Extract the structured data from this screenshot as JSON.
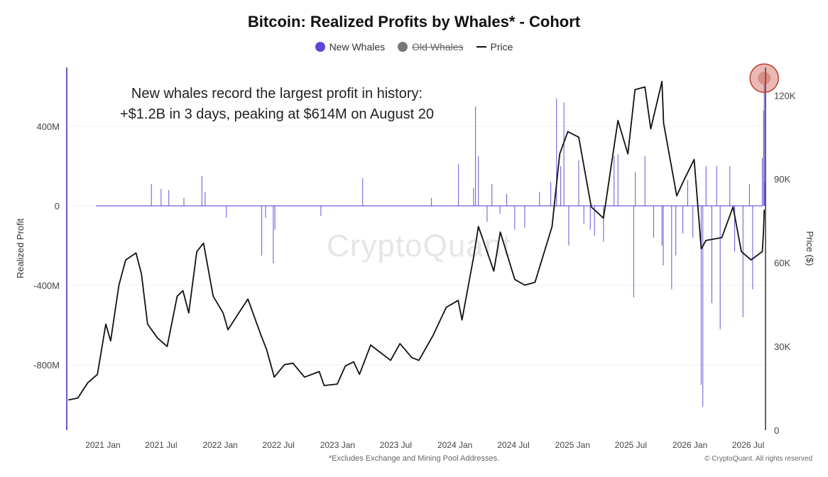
{
  "chart_data": {
    "type": "bar",
    "title": "Bitcoin: Realized Profits by Whales* - Cohort",
    "legend": {
      "placement": "top-center",
      "entries": [
        {
          "label": "New Whales",
          "color": "#5b47d6",
          "marker": "dot",
          "active": true
        },
        {
          "label": "Old Whales",
          "color": "#777777",
          "marker": "dot",
          "active": false
        },
        {
          "label": "Price",
          "color": "#111111",
          "marker": "line",
          "active": true
        }
      ]
    },
    "ylabel": "Realized Profit",
    "y2label": "Price ($)",
    "ylim": [
      -1000,
      600
    ],
    "y2lim": [
      0,
      130000
    ],
    "x_ticks": [
      "2021 Jan",
      "2021 Jul",
      "2022 Jan",
      "2022 Jul",
      "2023 Jan",
      "2023 Jul",
      "2024 Jan",
      "2024 Jul",
      "2025 Jan",
      "2025 Jul",
      "2026 Jan",
      "2026 Jul"
    ],
    "y_ticks": [
      {
        "value": 400,
        "label": "400M"
      },
      {
        "value": 0,
        "label": "0"
      },
      {
        "value": -400,
        "label": "-400M"
      },
      {
        "value": -800,
        "label": "-800M"
      }
    ],
    "y2_ticks": [
      {
        "value": 120000,
        "label": "120K"
      },
      {
        "value": 90000,
        "label": "90K"
      },
      {
        "value": 60000,
        "label": "60K"
      },
      {
        "value": 30000,
        "label": "30K"
      },
      {
        "value": 0,
        "label": "0"
      }
    ],
    "grid": true,
    "annotation": {
      "line1": "New whales record the largest profit in history:",
      "line2": "+$1.2B in 3 days, peaking at $614M on August 20",
      "peak_date": "2026-08-20",
      "peak_value": 614
    },
    "series": [
      {
        "name": "New Whales",
        "kind": "bar",
        "unit": "M",
        "points": [
          [
            "2021-06-01",
            110
          ],
          [
            "2021-07-01",
            85
          ],
          [
            "2021-07-25",
            80
          ],
          [
            "2021-09-10",
            40
          ],
          [
            "2021-11-05",
            150
          ],
          [
            "2021-11-15",
            70
          ],
          [
            "2022-01-20",
            -60
          ],
          [
            "2022-05-10",
            -250
          ],
          [
            "2022-05-22",
            -60
          ],
          [
            "2022-06-15",
            -290
          ],
          [
            "2022-06-20",
            -120
          ],
          [
            "2022-11-10",
            -50
          ],
          [
            "2023-03-20",
            140
          ],
          [
            "2023-10-20",
            40
          ],
          [
            "2024-01-12",
            210
          ],
          [
            "2024-02-28",
            90
          ],
          [
            "2024-03-05",
            500
          ],
          [
            "2024-03-14",
            250
          ],
          [
            "2024-04-10",
            -80
          ],
          [
            "2024-04-25",
            110
          ],
          [
            "2024-05-20",
            -40
          ],
          [
            "2024-06-10",
            60
          ],
          [
            "2024-07-05",
            -120
          ],
          [
            "2024-08-05",
            -110
          ],
          [
            "2024-09-20",
            70
          ],
          [
            "2024-10-25",
            120
          ],
          [
            "2024-11-12",
            540
          ],
          [
            "2024-11-25",
            200
          ],
          [
            "2024-12-05",
            520
          ],
          [
            "2024-12-20",
            -200
          ],
          [
            "2025-01-20",
            230
          ],
          [
            "2025-02-05",
            -90
          ],
          [
            "2025-02-25",
            -120
          ],
          [
            "2025-03-10",
            -150
          ],
          [
            "2025-04-07",
            -180
          ],
          [
            "2025-05-10",
            250
          ],
          [
            "2025-05-22",
            260
          ],
          [
            "2025-07-10",
            -460
          ],
          [
            "2025-07-15",
            170
          ],
          [
            "2025-08-14",
            250
          ],
          [
            "2025-09-10",
            -160
          ],
          [
            "2025-10-06",
            -200
          ],
          [
            "2025-10-10",
            -300
          ],
          [
            "2025-11-05",
            -420
          ],
          [
            "2025-11-18",
            -250
          ],
          [
            "2025-12-10",
            -140
          ],
          [
            "2025-12-25",
            130
          ],
          [
            "2026-01-10",
            -160
          ],
          [
            "2026-02-05",
            -900
          ],
          [
            "2026-02-10",
            -1010
          ],
          [
            "2026-02-20",
            200
          ],
          [
            "2026-03-10",
            -490
          ],
          [
            "2026-03-25",
            200
          ],
          [
            "2026-04-05",
            -620
          ],
          [
            "2026-05-05",
            200
          ],
          [
            "2026-05-20",
            -230
          ],
          [
            "2026-06-15",
            -560
          ],
          [
            "2026-07-05",
            110
          ],
          [
            "2026-07-15",
            -420
          ],
          [
            "2026-08-14",
            240
          ],
          [
            "2026-08-18",
            480
          ],
          [
            "2026-08-20",
            614
          ],
          [
            "2026-08-22",
            120
          ]
        ]
      },
      {
        "name": "Price",
        "kind": "line",
        "unit": "USD",
        "points": [
          [
            "2020-09-15",
            10800
          ],
          [
            "2020-10-15",
            11500
          ],
          [
            "2020-11-15",
            17000
          ],
          [
            "2020-12-15",
            20000
          ],
          [
            "2021-01-10",
            38000
          ],
          [
            "2021-01-25",
            32000
          ],
          [
            "2021-02-20",
            52000
          ],
          [
            "2021-03-13",
            61000
          ],
          [
            "2021-04-14",
            63500
          ],
          [
            "2021-05-01",
            56000
          ],
          [
            "2021-05-20",
            38000
          ],
          [
            "2021-06-20",
            33000
          ],
          [
            "2021-07-20",
            30000
          ],
          [
            "2021-08-20",
            48000
          ],
          [
            "2021-09-07",
            50000
          ],
          [
            "2021-09-25",
            42000
          ],
          [
            "2021-10-20",
            64000
          ],
          [
            "2021-11-10",
            67000
          ],
          [
            "2021-12-10",
            48000
          ],
          [
            "2022-01-10",
            42000
          ],
          [
            "2022-01-25",
            36000
          ],
          [
            "2022-03-28",
            47000
          ],
          [
            "2022-05-08",
            34000
          ],
          [
            "2022-05-25",
            29000
          ],
          [
            "2022-06-18",
            19000
          ],
          [
            "2022-07-20",
            23500
          ],
          [
            "2022-08-15",
            24000
          ],
          [
            "2022-09-20",
            19000
          ],
          [
            "2022-11-05",
            21000
          ],
          [
            "2022-11-20",
            16000
          ],
          [
            "2022-12-31",
            16500
          ],
          [
            "2023-01-25",
            23000
          ],
          [
            "2023-02-20",
            24500
          ],
          [
            "2023-03-10",
            20000
          ],
          [
            "2023-04-14",
            30500
          ],
          [
            "2023-06-15",
            25000
          ],
          [
            "2023-07-14",
            31000
          ],
          [
            "2023-08-20",
            26000
          ],
          [
            "2023-09-11",
            25000
          ],
          [
            "2023-10-25",
            34000
          ],
          [
            "2023-12-05",
            44000
          ],
          [
            "2024-01-11",
            46500
          ],
          [
            "2024-01-23",
            39500
          ],
          [
            "2024-02-28",
            62000
          ],
          [
            "2024-03-14",
            73000
          ],
          [
            "2024-05-01",
            57000
          ],
          [
            "2024-05-21",
            71000
          ],
          [
            "2024-07-05",
            54000
          ],
          [
            "2024-08-05",
            52000
          ],
          [
            "2024-09-06",
            53000
          ],
          [
            "2024-10-29",
            73000
          ],
          [
            "2024-11-22",
            99000
          ],
          [
            "2024-12-17",
            107000
          ],
          [
            "2025-01-20",
            105000
          ],
          [
            "2025-02-28",
            80000
          ],
          [
            "2025-04-07",
            76000
          ],
          [
            "2025-05-22",
            111000
          ],
          [
            "2025-06-22",
            99000
          ],
          [
            "2025-07-14",
            122000
          ],
          [
            "2025-08-14",
            123000
          ],
          [
            "2025-09-01",
            108000
          ],
          [
            "2025-10-06",
            125000
          ],
          [
            "2025-10-11",
            110000
          ],
          [
            "2025-11-21",
            84000
          ],
          [
            "2025-12-15",
            90000
          ],
          [
            "2026-01-14",
            97000
          ],
          [
            "2026-02-05",
            65000
          ],
          [
            "2026-02-20",
            68000
          ],
          [
            "2026-04-10",
            69000
          ],
          [
            "2026-05-15",
            80000
          ],
          [
            "2026-06-10",
            64000
          ],
          [
            "2026-07-10",
            61000
          ],
          [
            "2026-08-14",
            64000
          ],
          [
            "2026-08-18",
            72000
          ],
          [
            "2026-08-20",
            79000
          ]
        ]
      }
    ],
    "highlight": {
      "date": "2026-08-20",
      "value": 614,
      "color": "#c0392b"
    }
  },
  "watermark": "CryptoQuant",
  "footnote": "*Excludes Exchange and Mining Pool Addresses.",
  "copyright": "© CryptoQuant. All rights reserved"
}
